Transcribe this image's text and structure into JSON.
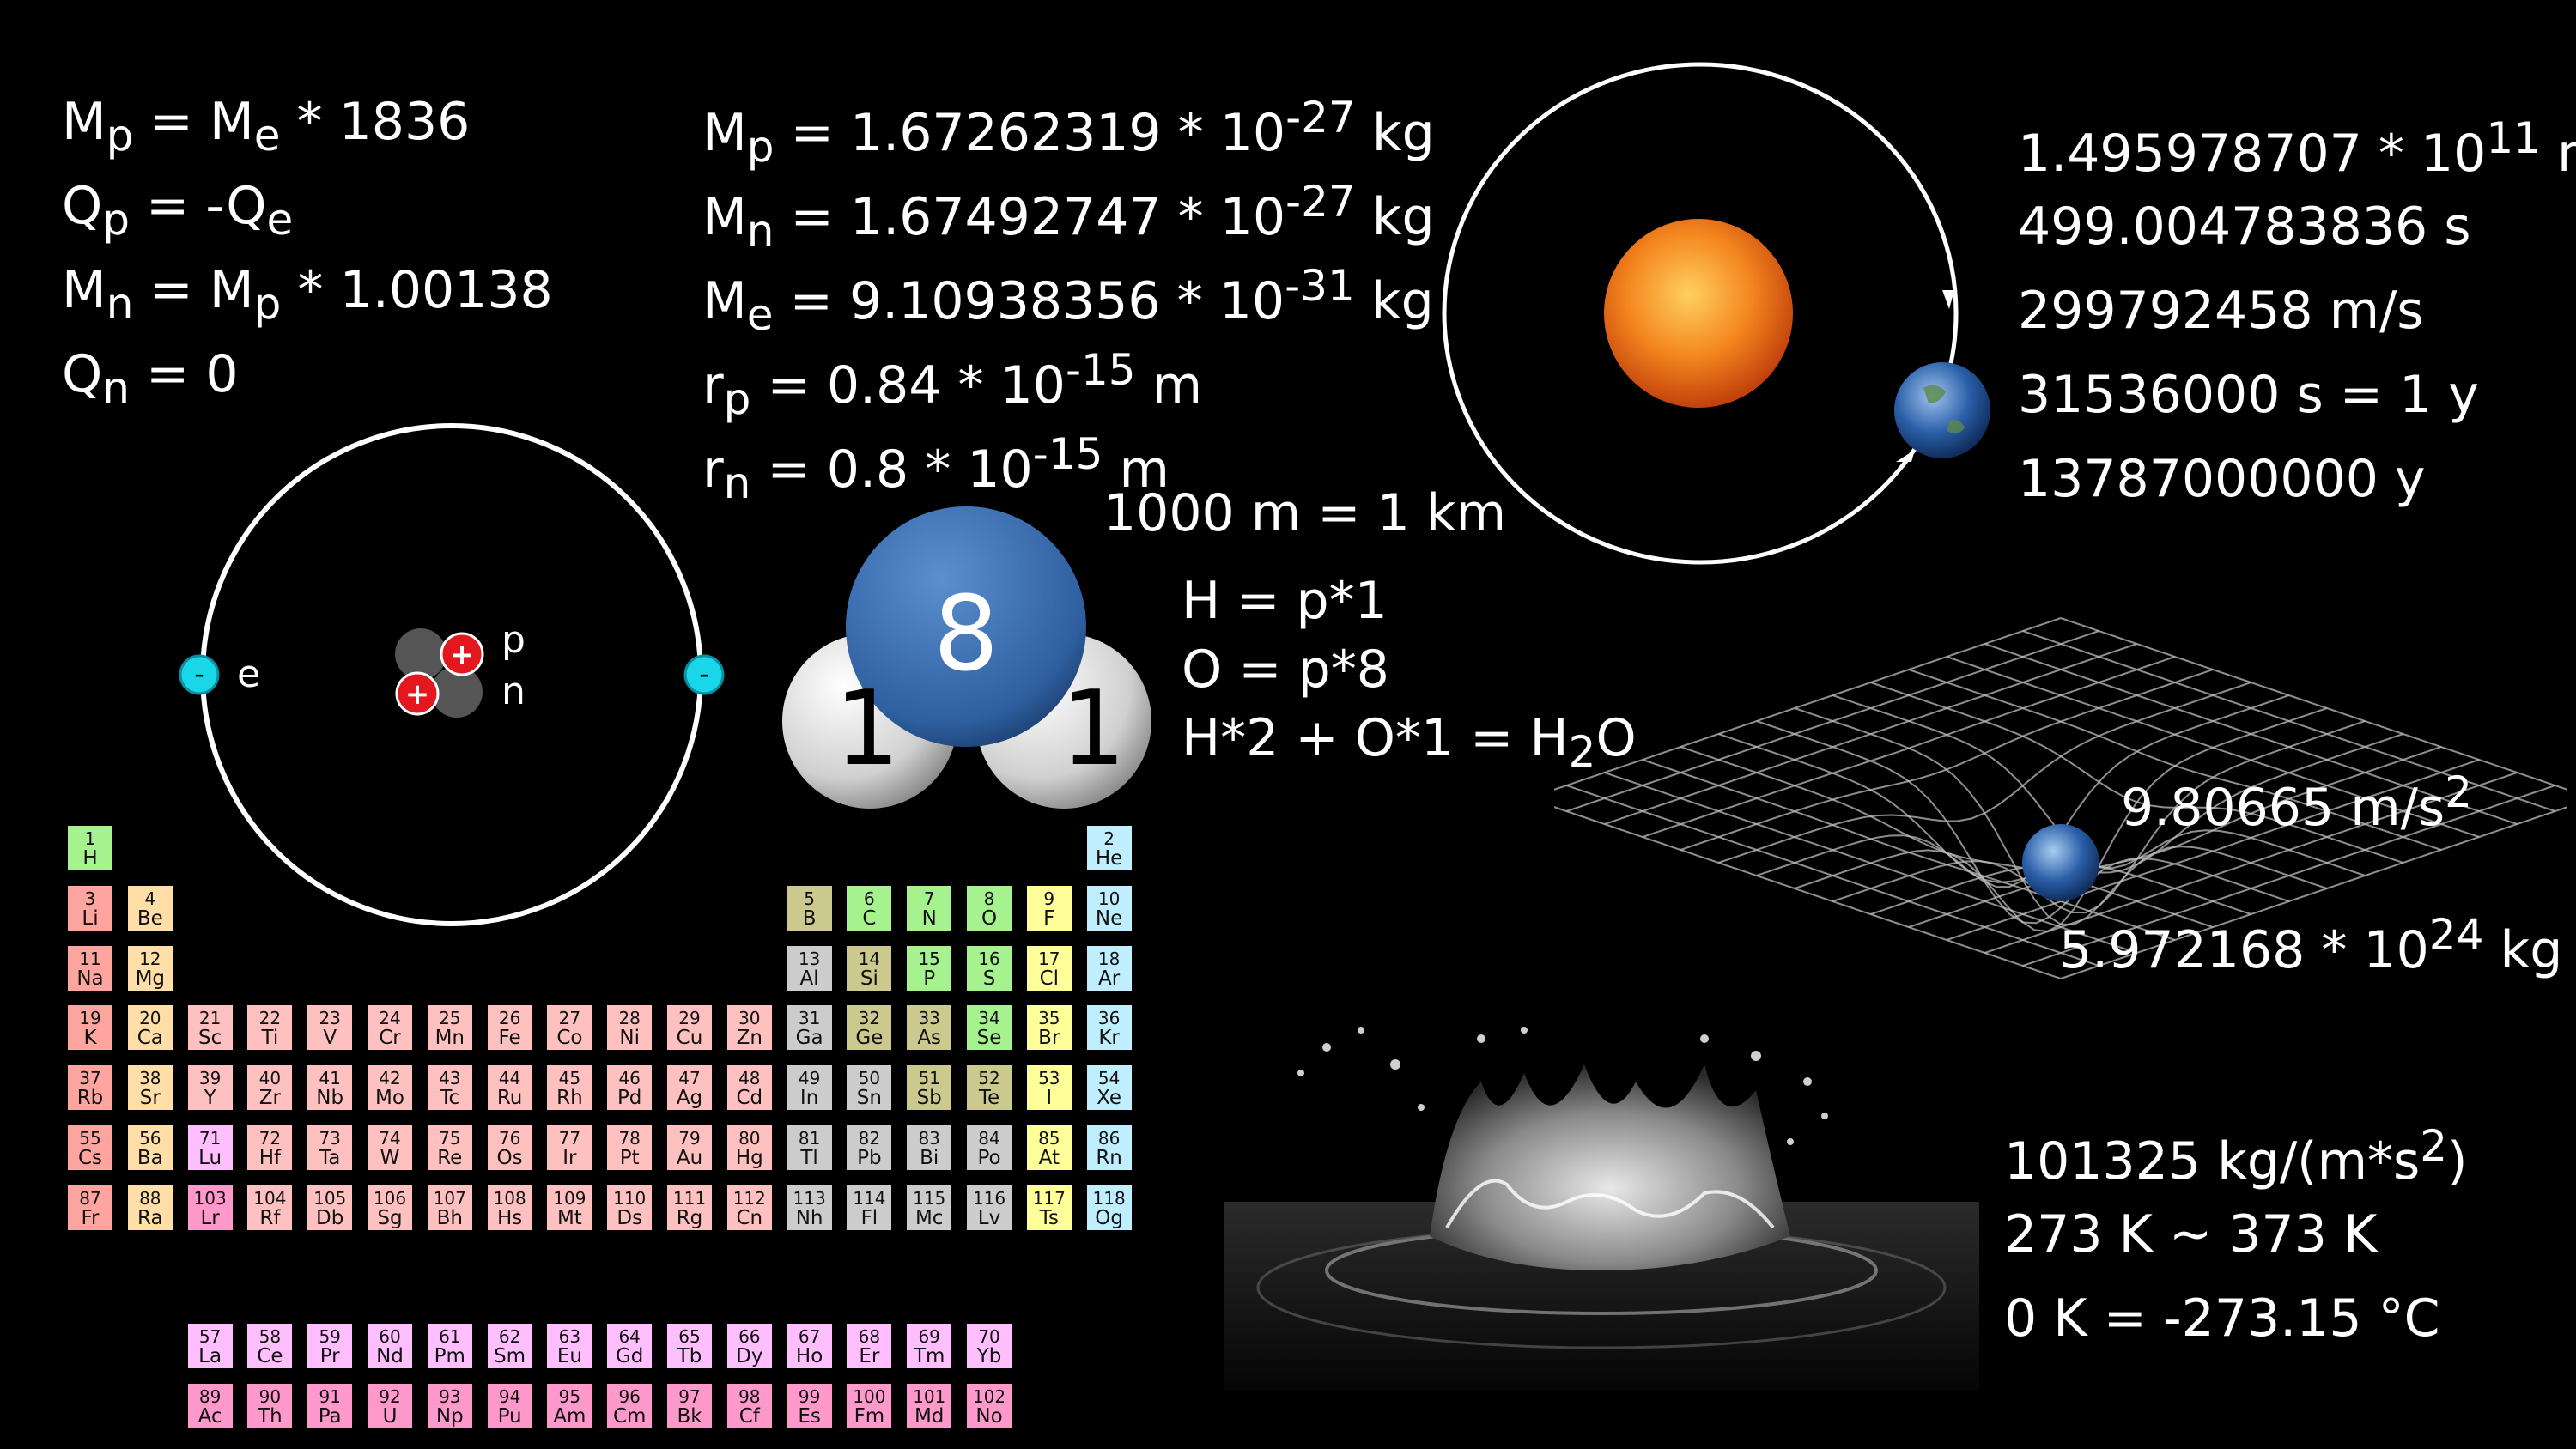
{
  "particle_facts": [
    [
      "M",
      "p",
      " = M",
      "e",
      " * 1836"
    ],
    [
      "Q",
      "p",
      " = -Q",
      "e",
      ""
    ],
    [
      "M",
      "n",
      " = M",
      "p",
      " * 1.00138"
    ],
    [
      "Q",
      "n",
      " = 0",
      "",
      ""
    ]
  ],
  "masses": [
    {
      "sym": "M",
      "sub": "p",
      "pre": " = 1.67262319 * 10",
      "exp": "-27",
      "post": " kg"
    },
    {
      "sym": "M",
      "sub": "n",
      "pre": " = 1.67492747 * 10",
      "exp": "-27",
      "post": " kg"
    },
    {
      "sym": "M",
      "sub": "e",
      "pre": " = 9.10938356 * 10",
      "exp": "-31",
      "post": " kg"
    },
    {
      "sym": "r",
      "sub": "p",
      "pre": " = 0.84 * 10",
      "exp": "-15",
      "post": " m"
    },
    {
      "sym": "r",
      "sub": "n",
      "pre": " = 0.8 * 10",
      "exp": "-15",
      "post": " m"
    }
  ],
  "distance_note": "1000 m = 1 km",
  "astro_facts": [
    {
      "pre": "1.495978707 * 10",
      "exp": "11",
      "post": " m"
    },
    {
      "pre": "499.004783836 s",
      "exp": "",
      "post": ""
    },
    {
      "pre": "299792458 m/s",
      "exp": "",
      "post": ""
    },
    {
      "pre": "31536000 s = 1 y",
      "exp": "",
      "post": ""
    },
    {
      "pre": "13787000000 y",
      "exp": "",
      "post": ""
    }
  ],
  "water_rules": {
    "line1": "H = p*1",
    "line2": "O = p*8",
    "line3_pre": "H*2 + O*1 = H",
    "line3_sub": "2",
    "line3_post": "O"
  },
  "molecule": {
    "oxygen_label": "8",
    "hydrogen_label_left": "1",
    "hydrogen_label_right": "1"
  },
  "atom": {
    "electron_sign": "-",
    "proton_sign": "+",
    "electron_label": "e",
    "proton_label": "p",
    "neutron_label": "n"
  },
  "gravity": {
    "accel_pre": "9.80665 m/s",
    "accel_exp": "2",
    "mass_pre": "5.972168 * 10",
    "mass_exp": "24",
    "mass_post": " kg"
  },
  "thermo": {
    "pressure_pre": "101325 kg/(m*s",
    "pressure_exp": "2",
    "pressure_post": ")",
    "range": "273 K ~ 373 K",
    "zero": "0 K = -273.15 °C"
  },
  "colors": {
    "background": "#000000",
    "nonmetal": "#a6f28f",
    "noble": "#bfefff",
    "alkali": "#ffa5a0",
    "alkaline": "#ffdea8",
    "metalloid": "#ccc98f",
    "post_transition": "#cccccc",
    "transition": "#ffc0c0",
    "lanthanide": "#ffbfff",
    "actinide": "#ff99cc",
    "halogen": "#ffff99",
    "ocean": "#2a5fa8",
    "sun": "#f07020",
    "molecule_oxygen": "#3a6fb0",
    "electron": "#19d6e8",
    "proton": "#e3171e",
    "neutron": "#555555"
  },
  "periodic_table": [
    {
      "z": "1",
      "s": "H",
      "r": 1,
      "c": 1,
      "cat": "nonmetal"
    },
    {
      "z": "2",
      "s": "He",
      "r": 1,
      "c": 18,
      "cat": "noble"
    },
    {
      "z": "3",
      "s": "Li",
      "r": 2,
      "c": 1,
      "cat": "alkali"
    },
    {
      "z": "4",
      "s": "Be",
      "r": 2,
      "c": 2,
      "cat": "alkaline"
    },
    {
      "z": "5",
      "s": "B",
      "r": 2,
      "c": 13,
      "cat": "metalloid"
    },
    {
      "z": "6",
      "s": "C",
      "r": 2,
      "c": 14,
      "cat": "nonmetal"
    },
    {
      "z": "7",
      "s": "N",
      "r": 2,
      "c": 15,
      "cat": "nonmetal"
    },
    {
      "z": "8",
      "s": "O",
      "r": 2,
      "c": 16,
      "cat": "nonmetal"
    },
    {
      "z": "9",
      "s": "F",
      "r": 2,
      "c": 17,
      "cat": "halogen"
    },
    {
      "z": "10",
      "s": "Ne",
      "r": 2,
      "c": 18,
      "cat": "noble"
    },
    {
      "z": "11",
      "s": "Na",
      "r": 3,
      "c": 1,
      "cat": "alkali"
    },
    {
      "z": "12",
      "s": "Mg",
      "r": 3,
      "c": 2,
      "cat": "alkaline"
    },
    {
      "z": "13",
      "s": "Al",
      "r": 3,
      "c": 13,
      "cat": "post_transition"
    },
    {
      "z": "14",
      "s": "Si",
      "r": 3,
      "c": 14,
      "cat": "metalloid"
    },
    {
      "z": "15",
      "s": "P",
      "r": 3,
      "c": 15,
      "cat": "nonmetal"
    },
    {
      "z": "16",
      "s": "S",
      "r": 3,
      "c": 16,
      "cat": "nonmetal"
    },
    {
      "z": "17",
      "s": "Cl",
      "r": 3,
      "c": 17,
      "cat": "halogen"
    },
    {
      "z": "18",
      "s": "Ar",
      "r": 3,
      "c": 18,
      "cat": "noble"
    },
    {
      "z": "19",
      "s": "K",
      "r": 4,
      "c": 1,
      "cat": "alkali"
    },
    {
      "z": "20",
      "s": "Ca",
      "r": 4,
      "c": 2,
      "cat": "alkaline"
    },
    {
      "z": "21",
      "s": "Sc",
      "r": 4,
      "c": 3,
      "cat": "transition"
    },
    {
      "z": "22",
      "s": "Ti",
      "r": 4,
      "c": 4,
      "cat": "transition"
    },
    {
      "z": "23",
      "s": "V",
      "r": 4,
      "c": 5,
      "cat": "transition"
    },
    {
      "z": "24",
      "s": "Cr",
      "r": 4,
      "c": 6,
      "cat": "transition"
    },
    {
      "z": "25",
      "s": "Mn",
      "r": 4,
      "c": 7,
      "cat": "transition"
    },
    {
      "z": "26",
      "s": "Fe",
      "r": 4,
      "c": 8,
      "cat": "transition"
    },
    {
      "z": "27",
      "s": "Co",
      "r": 4,
      "c": 9,
      "cat": "transition"
    },
    {
      "z": "28",
      "s": "Ni",
      "r": 4,
      "c": 10,
      "cat": "transition"
    },
    {
      "z": "29",
      "s": "Cu",
      "r": 4,
      "c": 11,
      "cat": "transition"
    },
    {
      "z": "30",
      "s": "Zn",
      "r": 4,
      "c": 12,
      "cat": "transition"
    },
    {
      "z": "31",
      "s": "Ga",
      "r": 4,
      "c": 13,
      "cat": "post_transition"
    },
    {
      "z": "32",
      "s": "Ge",
      "r": 4,
      "c": 14,
      "cat": "metalloid"
    },
    {
      "z": "33",
      "s": "As",
      "r": 4,
      "c": 15,
      "cat": "metalloid"
    },
    {
      "z": "34",
      "s": "Se",
      "r": 4,
      "c": 16,
      "cat": "nonmetal"
    },
    {
      "z": "35",
      "s": "Br",
      "r": 4,
      "c": 17,
      "cat": "halogen"
    },
    {
      "z": "36",
      "s": "Kr",
      "r": 4,
      "c": 18,
      "cat": "noble"
    },
    {
      "z": "37",
      "s": "Rb",
      "r": 5,
      "c": 1,
      "cat": "alkali"
    },
    {
      "z": "38",
      "s": "Sr",
      "r": 5,
      "c": 2,
      "cat": "alkaline"
    },
    {
      "z": "39",
      "s": "Y",
      "r": 5,
      "c": 3,
      "cat": "transition"
    },
    {
      "z": "40",
      "s": "Zr",
      "r": 5,
      "c": 4,
      "cat": "transition"
    },
    {
      "z": "41",
      "s": "Nb",
      "r": 5,
      "c": 5,
      "cat": "transition"
    },
    {
      "z": "42",
      "s": "Mo",
      "r": 5,
      "c": 6,
      "cat": "transition"
    },
    {
      "z": "43",
      "s": "Tc",
      "r": 5,
      "c": 7,
      "cat": "transition"
    },
    {
      "z": "44",
      "s": "Ru",
      "r": 5,
      "c": 8,
      "cat": "transition"
    },
    {
      "z": "45",
      "s": "Rh",
      "r": 5,
      "c": 9,
      "cat": "transition"
    },
    {
      "z": "46",
      "s": "Pd",
      "r": 5,
      "c": 10,
      "cat": "transition"
    },
    {
      "z": "47",
      "s": "Ag",
      "r": 5,
      "c": 11,
      "cat": "transition"
    },
    {
      "z": "48",
      "s": "Cd",
      "r": 5,
      "c": 12,
      "cat": "transition"
    },
    {
      "z": "49",
      "s": "In",
      "r": 5,
      "c": 13,
      "cat": "post_transition"
    },
    {
      "z": "50",
      "s": "Sn",
      "r": 5,
      "c": 14,
      "cat": "post_transition"
    },
    {
      "z": "51",
      "s": "Sb",
      "r": 5,
      "c": 15,
      "cat": "metalloid"
    },
    {
      "z": "52",
      "s": "Te",
      "r": 5,
      "c": 16,
      "cat": "metalloid"
    },
    {
      "z": "53",
      "s": "I",
      "r": 5,
      "c": 17,
      "cat": "halogen"
    },
    {
      "z": "54",
      "s": "Xe",
      "r": 5,
      "c": 18,
      "cat": "noble"
    },
    {
      "z": "55",
      "s": "Cs",
      "r": 6,
      "c": 1,
      "cat": "alkali"
    },
    {
      "z": "56",
      "s": "Ba",
      "r": 6,
      "c": 2,
      "cat": "alkaline"
    },
    {
      "z": "71",
      "s": "Lu",
      "r": 6,
      "c": 3,
      "cat": "lanthanide"
    },
    {
      "z": "72",
      "s": "Hf",
      "r": 6,
      "c": 4,
      "cat": "transition"
    },
    {
      "z": "73",
      "s": "Ta",
      "r": 6,
      "c": 5,
      "cat": "transition"
    },
    {
      "z": "74",
      "s": "W",
      "r": 6,
      "c": 6,
      "cat": "transition"
    },
    {
      "z": "75",
      "s": "Re",
      "r": 6,
      "c": 7,
      "cat": "transition"
    },
    {
      "z": "76",
      "s": "Os",
      "r": 6,
      "c": 8,
      "cat": "transition"
    },
    {
      "z": "77",
      "s": "Ir",
      "r": 6,
      "c": 9,
      "cat": "transition"
    },
    {
      "z": "78",
      "s": "Pt",
      "r": 6,
      "c": 10,
      "cat": "transition"
    },
    {
      "z": "79",
      "s": "Au",
      "r": 6,
      "c": 11,
      "cat": "transition"
    },
    {
      "z": "80",
      "s": "Hg",
      "r": 6,
      "c": 12,
      "cat": "transition"
    },
    {
      "z": "81",
      "s": "Tl",
      "r": 6,
      "c": 13,
      "cat": "post_transition"
    },
    {
      "z": "82",
      "s": "Pb",
      "r": 6,
      "c": 14,
      "cat": "post_transition"
    },
    {
      "z": "83",
      "s": "Bi",
      "r": 6,
      "c": 15,
      "cat": "post_transition"
    },
    {
      "z": "84",
      "s": "Po",
      "r": 6,
      "c": 16,
      "cat": "post_transition"
    },
    {
      "z": "85",
      "s": "At",
      "r": 6,
      "c": 17,
      "cat": "halogen"
    },
    {
      "z": "86",
      "s": "Rn",
      "r": 6,
      "c": 18,
      "cat": "noble"
    },
    {
      "z": "87",
      "s": "Fr",
      "r": 7,
      "c": 1,
      "cat": "alkali"
    },
    {
      "z": "88",
      "s": "Ra",
      "r": 7,
      "c": 2,
      "cat": "alkaline"
    },
    {
      "z": "103",
      "s": "Lr",
      "r": 7,
      "c": 3,
      "cat": "actinide"
    },
    {
      "z": "104",
      "s": "Rf",
      "r": 7,
      "c": 4,
      "cat": "transition"
    },
    {
      "z": "105",
      "s": "Db",
      "r": 7,
      "c": 5,
      "cat": "transition"
    },
    {
      "z": "106",
      "s": "Sg",
      "r": 7,
      "c": 6,
      "cat": "transition"
    },
    {
      "z": "107",
      "s": "Bh",
      "r": 7,
      "c": 7,
      "cat": "transition"
    },
    {
      "z": "108",
      "s": "Hs",
      "r": 7,
      "c": 8,
      "cat": "transition"
    },
    {
      "z": "109",
      "s": "Mt",
      "r": 7,
      "c": 9,
      "cat": "transition"
    },
    {
      "z": "110",
      "s": "Ds",
      "r": 7,
      "c": 10,
      "cat": "transition"
    },
    {
      "z": "111",
      "s": "Rg",
      "r": 7,
      "c": 11,
      "cat": "transition"
    },
    {
      "z": "112",
      "s": "Cn",
      "r": 7,
      "c": 12,
      "cat": "transition"
    },
    {
      "z": "113",
      "s": "Nh",
      "r": 7,
      "c": 13,
      "cat": "post_transition"
    },
    {
      "z": "114",
      "s": "Fl",
      "r": 7,
      "c": 14,
      "cat": "post_transition"
    },
    {
      "z": "115",
      "s": "Mc",
      "r": 7,
      "c": 15,
      "cat": "post_transition"
    },
    {
      "z": "116",
      "s": "Lv",
      "r": 7,
      "c": 16,
      "cat": "post_transition"
    },
    {
      "z": "117",
      "s": "Ts",
      "r": 7,
      "c": 17,
      "cat": "halogen"
    },
    {
      "z": "118",
      "s": "Og",
      "r": 7,
      "c": 18,
      "cat": "noble"
    },
    {
      "z": "57",
      "s": "La",
      "r": 9,
      "c": 3,
      "cat": "lanthanide"
    },
    {
      "z": "58",
      "s": "Ce",
      "r": 9,
      "c": 4,
      "cat": "lanthanide"
    },
    {
      "z": "59",
      "s": "Pr",
      "r": 9,
      "c": 5,
      "cat": "lanthanide"
    },
    {
      "z": "60",
      "s": "Nd",
      "r": 9,
      "c": 6,
      "cat": "lanthanide"
    },
    {
      "z": "61",
      "s": "Pm",
      "r": 9,
      "c": 7,
      "cat": "lanthanide"
    },
    {
      "z": "62",
      "s": "Sm",
      "r": 9,
      "c": 8,
      "cat": "lanthanide"
    },
    {
      "z": "63",
      "s": "Eu",
      "r": 9,
      "c": 9,
      "cat": "lanthanide"
    },
    {
      "z": "64",
      "s": "Gd",
      "r": 9,
      "c": 10,
      "cat": "lanthanide"
    },
    {
      "z": "65",
      "s": "Tb",
      "r": 9,
      "c": 11,
      "cat": "lanthanide"
    },
    {
      "z": "66",
      "s": "Dy",
      "r": 9,
      "c": 12,
      "cat": "lanthanide"
    },
    {
      "z": "67",
      "s": "Ho",
      "r": 9,
      "c": 13,
      "cat": "lanthanide"
    },
    {
      "z": "68",
      "s": "Er",
      "r": 9,
      "c": 14,
      "cat": "lanthanide"
    },
    {
      "z": "69",
      "s": "Tm",
      "r": 9,
      "c": 15,
      "cat": "lanthanide"
    },
    {
      "z": "70",
      "s": "Yb",
      "r": 9,
      "c": 16,
      "cat": "lanthanide"
    },
    {
      "z": "89",
      "s": "Ac",
      "r": 10,
      "c": 3,
      "cat": "actinide"
    },
    {
      "z": "90",
      "s": "Th",
      "r": 10,
      "c": 4,
      "cat": "actinide"
    },
    {
      "z": "91",
      "s": "Pa",
      "r": 10,
      "c": 5,
      "cat": "actinide"
    },
    {
      "z": "92",
      "s": "U",
      "r": 10,
      "c": 6,
      "cat": "actinide"
    },
    {
      "z": "93",
      "s": "Np",
      "r": 10,
      "c": 7,
      "cat": "actinide"
    },
    {
      "z": "94",
      "s": "Pu",
      "r": 10,
      "c": 8,
      "cat": "actinide"
    },
    {
      "z": "95",
      "s": "Am",
      "r": 10,
      "c": 9,
      "cat": "actinide"
    },
    {
      "z": "96",
      "s": "Cm",
      "r": 10,
      "c": 10,
      "cat": "actinide"
    },
    {
      "z": "97",
      "s": "Bk",
      "r": 10,
      "c": 11,
      "cat": "actinide"
    },
    {
      "z": "98",
      "s": "Cf",
      "r": 10,
      "c": 12,
      "cat": "actinide"
    },
    {
      "z": "99",
      "s": "Es",
      "r": 10,
      "c": 13,
      "cat": "actinide"
    },
    {
      "z": "100",
      "s": "Fm",
      "r": 10,
      "c": 14,
      "cat": "actinide"
    },
    {
      "z": "101",
      "s": "Md",
      "r": 10,
      "c": 15,
      "cat": "actinide"
    },
    {
      "z": "102",
      "s": "No",
      "r": 10,
      "c": 16,
      "cat": "actinide"
    }
  ]
}
